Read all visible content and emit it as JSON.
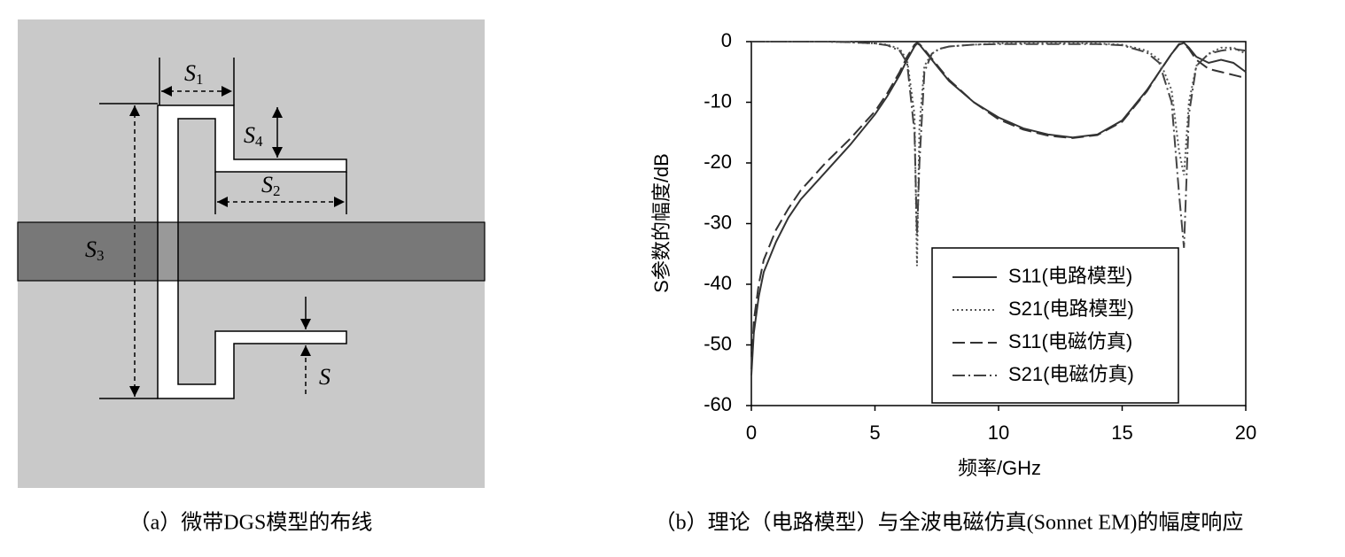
{
  "panel_a": {
    "labels": [
      {
        "letter": "S",
        "sub": "1"
      },
      {
        "letter": "S",
        "sub": "4"
      },
      {
        "letter": "S",
        "sub": "2"
      },
      {
        "letter": "S",
        "sub": "3"
      },
      {
        "letter": "S"
      }
    ],
    "caption": "（a）微带DGS模型的布线"
  },
  "chart_data": {
    "type": "line",
    "caption": "（b）理论（电路模型）与全波电磁仿真(Sonnet EM)的幅度响应",
    "xlabel": "频率/GHz",
    "ylabel": "S参数的幅度/dB",
    "xlim": [
      0,
      20
    ],
    "ylim": [
      -60,
      0
    ],
    "xticks": [
      0,
      5,
      10,
      15,
      20
    ],
    "yticks": [
      0,
      -10,
      -20,
      -30,
      -40,
      -50,
      -60
    ],
    "legend": "lower right",
    "x": [
      0,
      0.1,
      0.3,
      0.5,
      1,
      1.5,
      2,
      3,
      4,
      5,
      5.5,
      6,
      6.3,
      6.6,
      6.7,
      6.8,
      7,
      7.3,
      7.6,
      8,
      9,
      10,
      11,
      12,
      13,
      14,
      15,
      16,
      16.5,
      17,
      17.3,
      17.5,
      17.7,
      18,
      18.5,
      19,
      19.5,
      20
    ],
    "series": [
      {
        "name": "S11(电路模型)",
        "color": "#333333",
        "style": "solid",
        "values": [
          -55,
          -48,
          -42,
          -38,
          -33,
          -29,
          -26,
          -21.5,
          -17,
          -12,
          -9,
          -5.5,
          -3,
          -0.8,
          -0.3,
          -0.5,
          -1.5,
          -3,
          -4.5,
          -6.5,
          -10,
          -12.5,
          -14.3,
          -15.3,
          -15.8,
          -15.3,
          -13,
          -8,
          -5,
          -2,
          -0.5,
          -0.2,
          -1,
          -2.5,
          -3.5,
          -3,
          -3.5,
          -5
        ]
      },
      {
        "name": "S21(电路模型)",
        "color": "#555555",
        "style": "dotted",
        "values": [
          0,
          0,
          0,
          0,
          0,
          0,
          0,
          0,
          -0.1,
          -0.3,
          -0.5,
          -1.2,
          -3,
          -12,
          -37,
          -14,
          -4,
          -2,
          -1.2,
          -0.8,
          -0.5,
          -0.3,
          -0.3,
          -0.3,
          -0.3,
          -0.3,
          -0.5,
          -1.5,
          -3,
          -8,
          -18,
          -22,
          -10,
          -4,
          -2,
          -1,
          -1,
          -2
        ]
      },
      {
        "name": "S11(电磁仿真)",
        "color": "#333333",
        "style": "dashed",
        "values": [
          -54,
          -46,
          -40,
          -36,
          -31,
          -27.5,
          -24.5,
          -20,
          -16,
          -11.5,
          -8.5,
          -5,
          -2.5,
          -0.5,
          -0.2,
          -0.4,
          -1.3,
          -2.8,
          -4.3,
          -6.3,
          -10,
          -12.8,
          -14.5,
          -15.5,
          -15.9,
          -15.4,
          -13.2,
          -8.2,
          -5,
          -2,
          -0.4,
          -0.3,
          -1.2,
          -3,
          -4.5,
          -5,
          -5.5,
          -6
        ]
      },
      {
        "name": "S21(电磁仿真)",
        "color": "#444444",
        "style": "dashdot",
        "values": [
          0,
          0,
          0,
          0,
          0,
          0,
          0,
          0,
          -0.1,
          -0.3,
          -0.6,
          -1.5,
          -3.5,
          -15,
          -32,
          -20,
          -5,
          -2,
          -1.2,
          -0.8,
          -0.5,
          -0.4,
          -0.4,
          -0.4,
          -0.4,
          -0.4,
          -0.6,
          -1.8,
          -3.5,
          -10,
          -25,
          -34,
          -12,
          -4,
          -2,
          -1.5,
          -1.2,
          -1.5
        ]
      }
    ]
  }
}
